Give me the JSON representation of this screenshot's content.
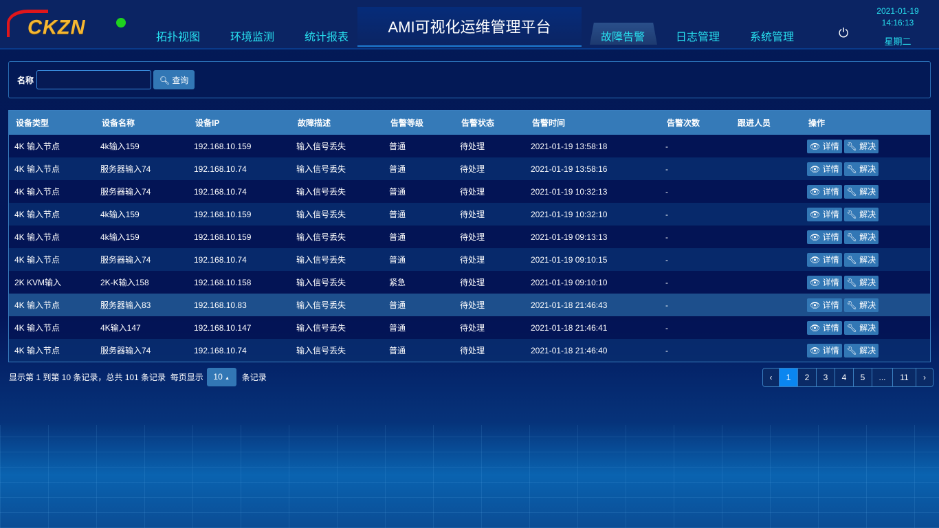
{
  "header": {
    "logo_text": "CKZN",
    "title": "AMI可视化运维管理平台",
    "nav_left": [
      "拓扑视图",
      "环境监测",
      "统计报表"
    ],
    "nav_right": [
      "故障告警",
      "日志管理",
      "系统管理"
    ],
    "active": "故障告警",
    "date": "2021-01-19",
    "time": "14:16:13",
    "weekday": "星期二",
    "power_icon": "power-icon"
  },
  "search": {
    "label": "名称",
    "value": "",
    "placeholder": "",
    "button": "查询"
  },
  "table": {
    "columns": [
      "设备类型",
      "设备名称",
      "设备IP",
      "故障描述",
      "告警等级",
      "告警状态",
      "告警时间",
      "告警次数",
      "跟进人员",
      "操作"
    ],
    "actions": {
      "detail": "详情",
      "resolve": "解决"
    },
    "highlighted_row": 8,
    "rows": [
      [
        "4K 输入节点",
        "4k输入159",
        "192.168.10.159",
        "输入信号丢失",
        "普通",
        "待处理",
        "2021-01-19 13:58:18",
        "-",
        ""
      ],
      [
        "4K 输入节点",
        "服务器输入74",
        "192.168.10.74",
        "输入信号丢失",
        "普通",
        "待处理",
        "2021-01-19 13:58:16",
        "-",
        ""
      ],
      [
        "4K 输入节点",
        "服务器输入74",
        "192.168.10.74",
        "输入信号丢失",
        "普通",
        "待处理",
        "2021-01-19 10:32:13",
        "-",
        ""
      ],
      [
        "4K 输入节点",
        "4k输入159",
        "192.168.10.159",
        "输入信号丢失",
        "普通",
        "待处理",
        "2021-01-19 10:32:10",
        "-",
        ""
      ],
      [
        "4K 输入节点",
        "4k输入159",
        "192.168.10.159",
        "输入信号丢失",
        "普通",
        "待处理",
        "2021-01-19 09:13:13",
        "-",
        ""
      ],
      [
        "4K 输入节点",
        "服务器输入74",
        "192.168.10.74",
        "输入信号丢失",
        "普通",
        "待处理",
        "2021-01-19 09:10:15",
        "-",
        ""
      ],
      [
        "2K KVM输入",
        "2K-K输入158",
        "192.168.10.158",
        "输入信号丢失",
        "紧急",
        "待处理",
        "2021-01-19 09:10:10",
        "-",
        ""
      ],
      [
        "4K 输入节点",
        "服务器输入83",
        "192.168.10.83",
        "输入信号丢失",
        "普通",
        "待处理",
        "2021-01-18 21:46:43",
        "-",
        ""
      ],
      [
        "4K 输入节点",
        "4K输入147",
        "192.168.10.147",
        "输入信号丢失",
        "普通",
        "待处理",
        "2021-01-18 21:46:41",
        "-",
        ""
      ],
      [
        "4K 输入节点",
        "服务器输入74",
        "192.168.10.74",
        "输入信号丢失",
        "普通",
        "待处理",
        "2021-01-18 21:46:40",
        "-",
        ""
      ]
    ]
  },
  "footer": {
    "info": "显示第 1 到第 10 条记录，总共 101 条记录",
    "per_page_prefix": "每页显示",
    "page_size": "10",
    "per_page_suffix": "条记录",
    "pages": [
      "‹",
      "1",
      "2",
      "3",
      "4",
      "5",
      "...",
      "11",
      "›"
    ],
    "current_page": "1"
  }
}
